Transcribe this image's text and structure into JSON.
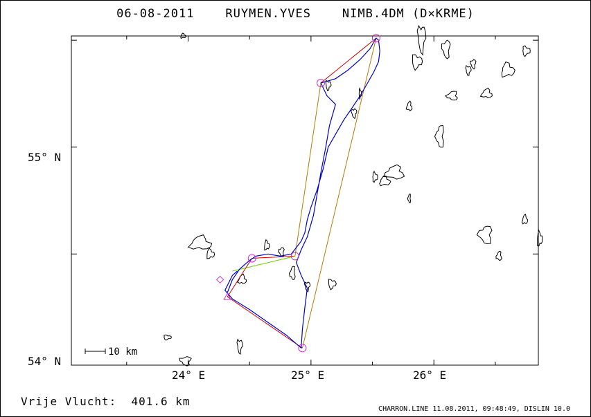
{
  "title": "06-08-2011    RUYMEN.YVES    NIMB.4DM (D×KRME)",
  "axes": {
    "lat_labels": [
      "55° N",
      "54° N"
    ],
    "lon_labels": [
      "24° E",
      "25° E",
      "26° E"
    ]
  },
  "scale_bar": {
    "label": "10 km"
  },
  "distance_label": "Vrije Vlucht:  401.6 km",
  "footer": "CHARRON.LINE 11.08.2011, 09:48:49, DISLIN 10.0",
  "colors": {
    "track": "#0000cc",
    "task_line": "#cc0000",
    "task_line_alt": "#b87800",
    "leg_green": "#66cc00",
    "turnpoint": "#cc33cc",
    "coast": "#000000"
  },
  "map_data": {
    "lon_range": [
      23.05,
      26.85
    ],
    "lat_range": [
      53.98,
      55.52
    ],
    "turnpoints": [
      {
        "lon": 25.53,
        "lat": 55.51
      },
      {
        "lon": 25.08,
        "lat": 55.3
      },
      {
        "lon": 24.52,
        "lat": 54.48
      },
      {
        "lon": 24.87,
        "lat": 54.49
      },
      {
        "lon": 24.93,
        "lat": 54.06
      },
      {
        "lon": 24.32,
        "lat": 54.3
      },
      {
        "lon": 24.26,
        "lat": 54.38
      }
    ],
    "task_route": [
      [
        24.32,
        54.3
      ],
      [
        24.93,
        54.06
      ],
      [
        25.53,
        55.51
      ],
      [
        25.08,
        55.3
      ],
      [
        24.87,
        54.49
      ],
      [
        24.52,
        54.48
      ],
      [
        24.32,
        54.3
      ]
    ],
    "green_leg": [
      [
        24.36,
        54.42
      ],
      [
        24.87,
        54.49
      ]
    ],
    "track": [
      [
        24.32,
        54.32
      ],
      [
        24.36,
        54.38
      ],
      [
        24.42,
        54.43
      ],
      [
        24.5,
        54.47
      ],
      [
        24.55,
        54.49
      ],
      [
        24.65,
        54.5
      ],
      [
        24.75,
        54.49
      ],
      [
        24.84,
        54.5
      ],
      [
        24.88,
        54.53
      ],
      [
        24.92,
        54.56
      ],
      [
        24.95,
        54.6
      ],
      [
        24.97,
        54.66
      ],
      [
        25.0,
        54.72
      ],
      [
        25.05,
        54.8
      ],
      [
        25.1,
        54.9
      ],
      [
        25.14,
        55.0
      ],
      [
        25.2,
        55.06
      ],
      [
        25.27,
        55.13
      ],
      [
        25.33,
        55.18
      ],
      [
        25.4,
        55.24
      ],
      [
        25.46,
        55.3
      ],
      [
        25.51,
        55.35
      ],
      [
        25.55,
        55.4
      ],
      [
        25.56,
        55.45
      ],
      [
        25.55,
        55.5
      ],
      [
        25.53,
        55.51
      ],
      [
        25.48,
        55.46
      ],
      [
        25.4,
        55.41
      ],
      [
        25.3,
        55.36
      ],
      [
        25.2,
        55.32
      ],
      [
        25.08,
        55.3
      ],
      [
        25.13,
        55.24
      ],
      [
        25.2,
        55.2
      ],
      [
        25.15,
        55.1
      ],
      [
        25.12,
        55.0
      ],
      [
        25.08,
        54.88
      ],
      [
        25.05,
        54.78
      ],
      [
        25.02,
        54.68
      ],
      [
        24.97,
        54.58
      ],
      [
        24.92,
        54.52
      ],
      [
        24.88,
        54.46
      ],
      [
        24.92,
        54.4
      ],
      [
        24.97,
        54.34
      ],
      [
        24.95,
        54.25
      ],
      [
        24.93,
        54.15
      ],
      [
        24.92,
        54.06
      ],
      [
        24.8,
        54.12
      ],
      [
        24.65,
        54.18
      ],
      [
        24.5,
        54.24
      ],
      [
        24.36,
        54.29
      ],
      [
        24.3,
        54.33
      ],
      [
        24.36,
        54.4
      ],
      [
        24.4,
        54.42
      ]
    ],
    "lakes": [
      {
        "lon": 24.1,
        "lat": 54.55,
        "rx": 0.08,
        "ry": 0.03
      },
      {
        "lon": 24.18,
        "lat": 54.5,
        "rx": 0.03,
        "ry": 0.02
      },
      {
        "lon": 25.86,
        "lat": 55.4,
        "rx": 0.04,
        "ry": 0.03
      },
      {
        "lon": 25.9,
        "lat": 55.51,
        "rx": 0.03,
        "ry": 0.06
      },
      {
        "lon": 26.1,
        "lat": 55.46,
        "rx": 0.03,
        "ry": 0.04
      },
      {
        "lon": 26.15,
        "lat": 55.24,
        "rx": 0.04,
        "ry": 0.02
      },
      {
        "lon": 26.43,
        "lat": 55.25,
        "rx": 0.04,
        "ry": 0.02
      },
      {
        "lon": 26.6,
        "lat": 55.36,
        "rx": 0.05,
        "ry": 0.03
      },
      {
        "lon": 26.75,
        "lat": 55.45,
        "rx": 0.03,
        "ry": 0.02
      },
      {
        "lon": 26.28,
        "lat": 55.36,
        "rx": 0.02,
        "ry": 0.02
      },
      {
        "lon": 26.32,
        "lat": 55.39,
        "rx": 0.02,
        "ry": 0.02
      },
      {
        "lon": 26.05,
        "lat": 55.05,
        "rx": 0.03,
        "ry": 0.05
      },
      {
        "lon": 25.68,
        "lat": 54.88,
        "rx": 0.07,
        "ry": 0.03
      },
      {
        "lon": 25.6,
        "lat": 54.84,
        "rx": 0.04,
        "ry": 0.02
      },
      {
        "lon": 25.52,
        "lat": 54.86,
        "rx": 0.02,
        "ry": 0.02
      },
      {
        "lon": 25.14,
        "lat": 55.29,
        "rx": 0.02,
        "ry": 0.02
      },
      {
        "lon": 25.35,
        "lat": 55.16,
        "rx": 0.02,
        "ry": 0.02
      },
      {
        "lon": 26.42,
        "lat": 54.59,
        "rx": 0.05,
        "ry": 0.04
      },
      {
        "lon": 26.53,
        "lat": 54.49,
        "rx": 0.02,
        "ry": 0.02
      },
      {
        "lon": 26.74,
        "lat": 54.66,
        "rx": 0.02,
        "ry": 0.02
      },
      {
        "lon": 26.86,
        "lat": 54.57,
        "rx": 0.02,
        "ry": 0.03
      },
      {
        "lon": 25.17,
        "lat": 54.36,
        "rx": 0.03,
        "ry": 0.02
      },
      {
        "lon": 24.97,
        "lat": 54.35,
        "rx": 0.02,
        "ry": 0.02
      },
      {
        "lon": 24.76,
        "lat": 54.51,
        "rx": 0.02,
        "ry": 0.02
      },
      {
        "lon": 24.85,
        "lat": 54.41,
        "rx": 0.02,
        "ry": 0.03
      },
      {
        "lon": 24.44,
        "lat": 54.38,
        "rx": 0.03,
        "ry": 0.02
      },
      {
        "lon": 24.64,
        "lat": 54.54,
        "rx": 0.02,
        "ry": 0.02
      },
      {
        "lon": 23.83,
        "lat": 54.11,
        "rx": 0.03,
        "ry": 0.01
      },
      {
        "lon": 24.42,
        "lat": 54.07,
        "rx": 0.02,
        "ry": 0.03
      },
      {
        "lon": 23.98,
        "lat": 54.0,
        "rx": 0.04,
        "ry": 0.02
      },
      {
        "lon": 25.8,
        "lat": 54.76,
        "rx": 0.01,
        "ry": 0.02
      },
      {
        "lon": 25.8,
        "lat": 55.19,
        "rx": 0.02,
        "ry": 0.02
      },
      {
        "lon": 23.96,
        "lat": 55.52,
        "rx": 0.02,
        "ry": 0.01
      },
      {
        "lon": 25.4,
        "lat": 55.25,
        "rx": 0.01,
        "ry": 0.02
      }
    ]
  }
}
